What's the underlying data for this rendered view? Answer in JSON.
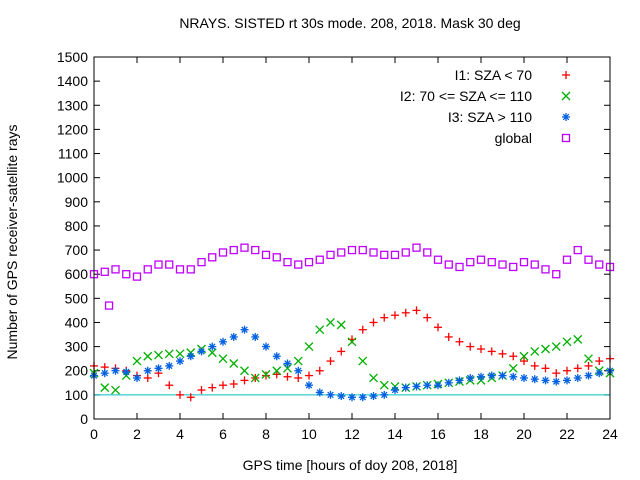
{
  "chart_data": {
    "type": "scatter",
    "title": "NRAYS. SISTED rt 30s mode. 208, 2018. Mask 30 deg",
    "xlabel": "GPS time [hours of doy 208, 2018]",
    "ylabel": "Number of GPS receiver-satellite rays",
    "xlim": [
      0,
      24
    ],
    "ylim": [
      0,
      1500
    ],
    "xticks": [
      0,
      2,
      4,
      6,
      8,
      10,
      12,
      14,
      16,
      18,
      20,
      22,
      24
    ],
    "yticks": [
      0,
      100,
      200,
      300,
      400,
      500,
      600,
      700,
      800,
      900,
      1000,
      1100,
      1200,
      1300,
      1400,
      1500
    ],
    "reference_line": {
      "y": 100,
      "color": "#00c0c0"
    },
    "legend_position": "top-right",
    "series": [
      {
        "name": "I1: SZA < 70",
        "marker": "+",
        "color": "#ff0000",
        "x": [
          0,
          0.5,
          1,
          1.5,
          2,
          2.5,
          3,
          3.5,
          4,
          4.5,
          5,
          5.5,
          6,
          6.5,
          7,
          7.5,
          8,
          8.5,
          9,
          9.5,
          10,
          10.5,
          11,
          11.5,
          12,
          12.5,
          13,
          13.5,
          14,
          14.5,
          15,
          15.5,
          16,
          16.5,
          17,
          17.5,
          18,
          18.5,
          19,
          19.5,
          20,
          20.5,
          21,
          21.5,
          22,
          22.5,
          23,
          23.5,
          24
        ],
        "y": [
          220,
          215,
          210,
          200,
          180,
          170,
          190,
          140,
          100,
          90,
          120,
          130,
          140,
          145,
          160,
          170,
          180,
          185,
          175,
          170,
          180,
          200,
          240,
          280,
          330,
          370,
          400,
          420,
          430,
          440,
          450,
          420,
          380,
          340,
          320,
          300,
          290,
          280,
          270,
          260,
          240,
          220,
          210,
          190,
          200,
          210,
          220,
          240,
          250
        ]
      },
      {
        "name": "I2: 70 <= SZA <= 110",
        "marker": "x",
        "color": "#00b000",
        "x": [
          0,
          0.5,
          1,
          1.5,
          2,
          2.5,
          3,
          3.5,
          4,
          4.5,
          5,
          5.5,
          6,
          6.5,
          7,
          7.5,
          8,
          8.5,
          9,
          9.5,
          10,
          10.5,
          11,
          11.5,
          12,
          12.5,
          13,
          13.5,
          14,
          14.5,
          15,
          15.5,
          16,
          16.5,
          17,
          17.5,
          18,
          18.5,
          19,
          19.5,
          20,
          20.5,
          21,
          21.5,
          22,
          22.5,
          23,
          23.5,
          24
        ],
        "y": [
          190,
          130,
          120,
          180,
          240,
          260,
          265,
          270,
          270,
          275,
          290,
          275,
          250,
          230,
          200,
          170,
          185,
          200,
          210,
          240,
          300,
          370,
          400,
          390,
          320,
          240,
          170,
          140,
          135,
          130,
          135,
          140,
          145,
          150,
          155,
          160,
          160,
          170,
          180,
          210,
          260,
          280,
          290,
          300,
          320,
          330,
          250,
          200,
          190
        ]
      },
      {
        "name": "I3: SZA > 110",
        "marker": "*",
        "color": "#0060e0",
        "x": [
          0,
          0.5,
          1,
          1.5,
          2,
          2.5,
          3,
          3.5,
          4,
          4.5,
          5,
          5.5,
          6,
          6.5,
          7,
          7.5,
          8,
          8.5,
          9,
          9.5,
          10,
          10.5,
          11,
          11.5,
          12,
          12.5,
          13,
          13.5,
          14,
          14.5,
          15,
          15.5,
          16,
          16.5,
          17,
          17.5,
          18,
          18.5,
          19,
          19.5,
          20,
          20.5,
          21,
          21.5,
          22,
          22.5,
          23,
          23.5,
          24
        ],
        "y": [
          180,
          190,
          200,
          195,
          170,
          200,
          210,
          220,
          240,
          260,
          280,
          300,
          320,
          340,
          370,
          340,
          300,
          260,
          230,
          200,
          140,
          110,
          100,
          95,
          90,
          90,
          95,
          100,
          120,
          130,
          135,
          140,
          140,
          150,
          160,
          170,
          175,
          180,
          180,
          175,
          170,
          165,
          160,
          155,
          160,
          170,
          180,
          190,
          200
        ]
      },
      {
        "name": "global",
        "marker": "square",
        "color": "#c000ff",
        "x": [
          0,
          0.5,
          0.7,
          1,
          1.5,
          2,
          2.5,
          3,
          3.5,
          4,
          4.5,
          5,
          5.5,
          6,
          6.5,
          7,
          7.5,
          8,
          8.5,
          9,
          9.5,
          10,
          10.5,
          11,
          11.5,
          12,
          12.5,
          13,
          13.5,
          14,
          14.5,
          15,
          15.5,
          16,
          16.5,
          17,
          17.5,
          18,
          18.5,
          19,
          19.5,
          20,
          20.5,
          21,
          21.5,
          22,
          22.5,
          23,
          23.5,
          24
        ],
        "y": [
          600,
          610,
          470,
          620,
          600,
          590,
          620,
          640,
          640,
          620,
          620,
          650,
          670,
          690,
          700,
          710,
          700,
          680,
          670,
          650,
          640,
          650,
          660,
          680,
          690,
          700,
          700,
          690,
          680,
          680,
          690,
          710,
          690,
          660,
          640,
          630,
          650,
          660,
          650,
          640,
          630,
          650,
          640,
          620,
          600,
          660,
          700,
          660,
          640,
          630
        ]
      }
    ]
  }
}
